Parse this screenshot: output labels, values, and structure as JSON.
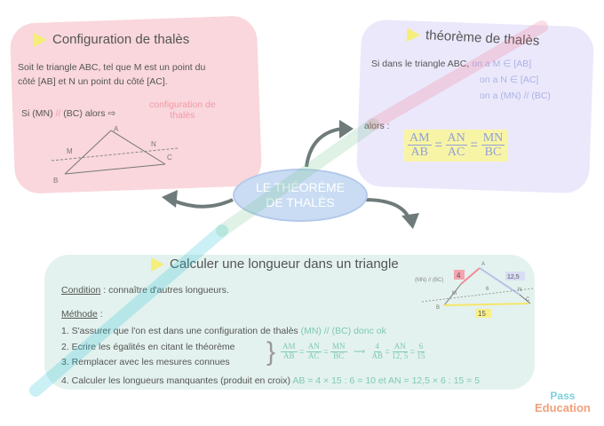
{
  "center": {
    "line1": "LE THÉORÈME",
    "line2": "DE THALÈS"
  },
  "configuration": {
    "title": "Configuration de thalès",
    "text_line1": "Soit le triangle ABC, tel que M est un point du",
    "text_line2": "côté [AB] et N un point du côté [AC].",
    "condition_prefix": "Si (MN)",
    "parallel": "//",
    "condition_suffix": "(BC) alors",
    "result_line1": "configuration de",
    "result_line2": "thalès",
    "points": {
      "A": "A",
      "B": "B",
      "C": "C",
      "M": "M",
      "N": "N"
    }
  },
  "theoreme": {
    "title": "théorème de thalès",
    "hypothesis": "Si dans le triangle ABC,",
    "cond1": "on a M ∈ [AB]",
    "cond2": "on a N ∈ [AC]",
    "cond3": "on a (MN) // (BC)",
    "alors": "alors :",
    "f1n": "AM",
    "f1d": "AB",
    "f2n": "AN",
    "f2d": "AC",
    "f3n": "MN",
    "f3d": "BC",
    "eq": "="
  },
  "calcul": {
    "title": "Calculer une longueur dans un triangle",
    "condition_label": "Condition",
    "condition_text": " : connaître d'autres longueurs.",
    "methode_label": "Méthode",
    "methode_colon": " :",
    "step1": "1. S'assurer que l'on est dans une configuration de thalès",
    "step1_note": "(MN) // (BC) donc ok",
    "step2": "2. Ecrire les égalités en citant le théorème",
    "step3": "3. Remplacer avec les mesures connues",
    "step4": "4. Calculer les longueurs manquantes (produit en croix)",
    "step4_result": "AB = 4 × 15 : 6 = 10   et    AN = 12,5 × 6 : 15 = 5",
    "eq1": {
      "f1n": "AM",
      "f1d": "AB",
      "f2n": "AN",
      "f2d": "AC",
      "f3n": "MN",
      "f3d": "BC"
    },
    "arrow": "⟶",
    "eq2": {
      "f1n": "4",
      "f1d": "AB",
      "f2n": "AN",
      "f2d": "12, 5",
      "f3n": "6",
      "f3d": "15"
    },
    "figure": {
      "label": "(MN) // (BC)",
      "AM": "4",
      "AN_side": "12,5",
      "MN": "6",
      "BC": "15",
      "A": "A",
      "B": "B",
      "C": "C",
      "M": "M",
      "N": "N"
    }
  },
  "watermark": "pass-education",
  "logo": {
    "line1": "Pass",
    "line2": "Education"
  },
  "colors": {
    "pink_box": "#f9d7dc",
    "lavender_box": "#ece8fb",
    "green_box": "#e3f2ee",
    "center": "#c9dcf3",
    "arrow": "#6f7b7a"
  }
}
